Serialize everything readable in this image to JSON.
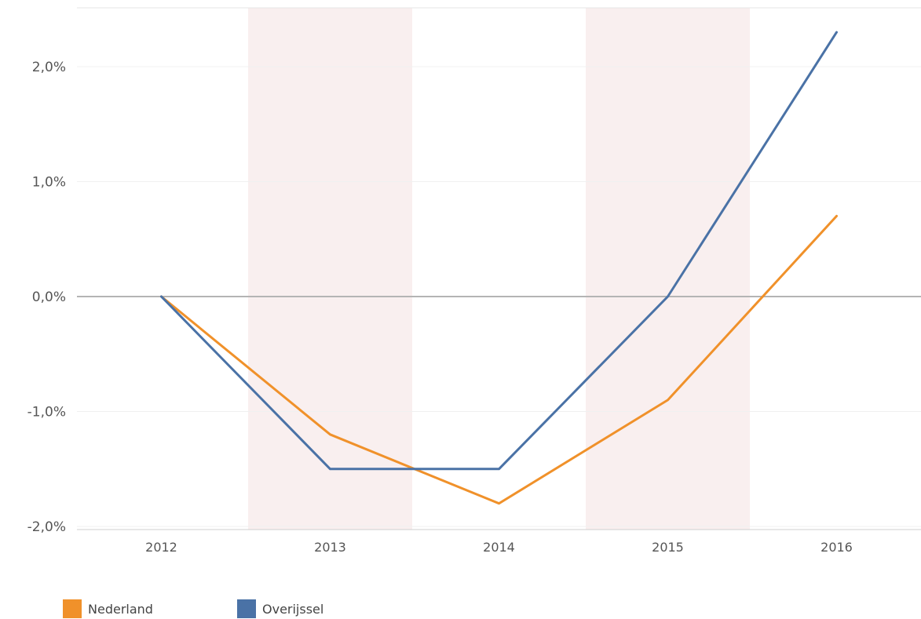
{
  "chart_data": {
    "type": "line",
    "title": "",
    "xlabel": "",
    "ylabel": "",
    "categories": [
      "2012",
      "2013",
      "2014",
      "2015",
      "2016"
    ],
    "ylim": [
      -2.0,
      2.5
    ],
    "yticks": [
      2.0,
      1.0,
      0.0,
      -1.0,
      -2.0
    ],
    "ytick_labels": [
      "2,0%",
      "1,0%",
      "0,0%",
      "-1,0%",
      "-2,0%"
    ],
    "grid": true,
    "zero_line": true,
    "shaded_categories": [
      "2013",
      "2015"
    ],
    "legend_position": "bottom-left",
    "series": [
      {
        "name": "Nederland",
        "color": "#f0912a",
        "values": [
          0.0,
          -1.2,
          -1.8,
          -0.9,
          0.7
        ]
      },
      {
        "name": "Overijssel",
        "color": "#4a72a6",
        "values": [
          0.0,
          -1.5,
          -1.5,
          0.0,
          2.3
        ]
      }
    ]
  }
}
